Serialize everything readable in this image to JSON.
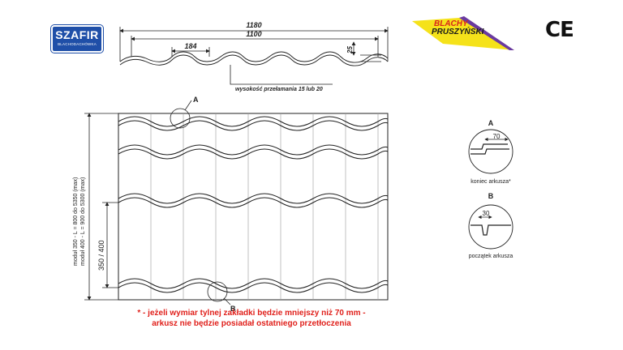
{
  "logos": {
    "szafir_name": "SZAFIR",
    "szafir_sub": "BLACHODACHÓWKA",
    "brand_line1": "BLACHY",
    "brand_line2": "PRUSZYŃSKI",
    "ce_mark": "CE"
  },
  "profile": {
    "width_total": "1180",
    "width_effective": "1100",
    "module_width": "184",
    "height": "25",
    "break_height_label": "wysokość przełamania 15 lub 20"
  },
  "sheet": {
    "module_note_1": "moduł 350 - L = 800 do 5350 (max)",
    "module_note_2": "moduł 400 - L = 900 do 5300 (max)",
    "module_size": "350 / 400",
    "marker_a": "A",
    "marker_b": "B"
  },
  "details": {
    "a_title": "A",
    "a_value": "70",
    "a_caption": "koniec arkusza*",
    "b_title": "B",
    "b_value": "30",
    "b_caption": "początek arkusza"
  },
  "footnote": {
    "line1": "* - jeżeli wymiar tylnej zakładki będzie mniejszy niż 70 mm -",
    "line2": "arkusz nie będzie posiadał ostatniego przetłoczenia"
  },
  "colors": {
    "brand_blue": "#1f4fa8",
    "brand_red": "#d9261c",
    "footnote_red": "#e0201b",
    "highlight_yellow": "#f5e21a"
  }
}
